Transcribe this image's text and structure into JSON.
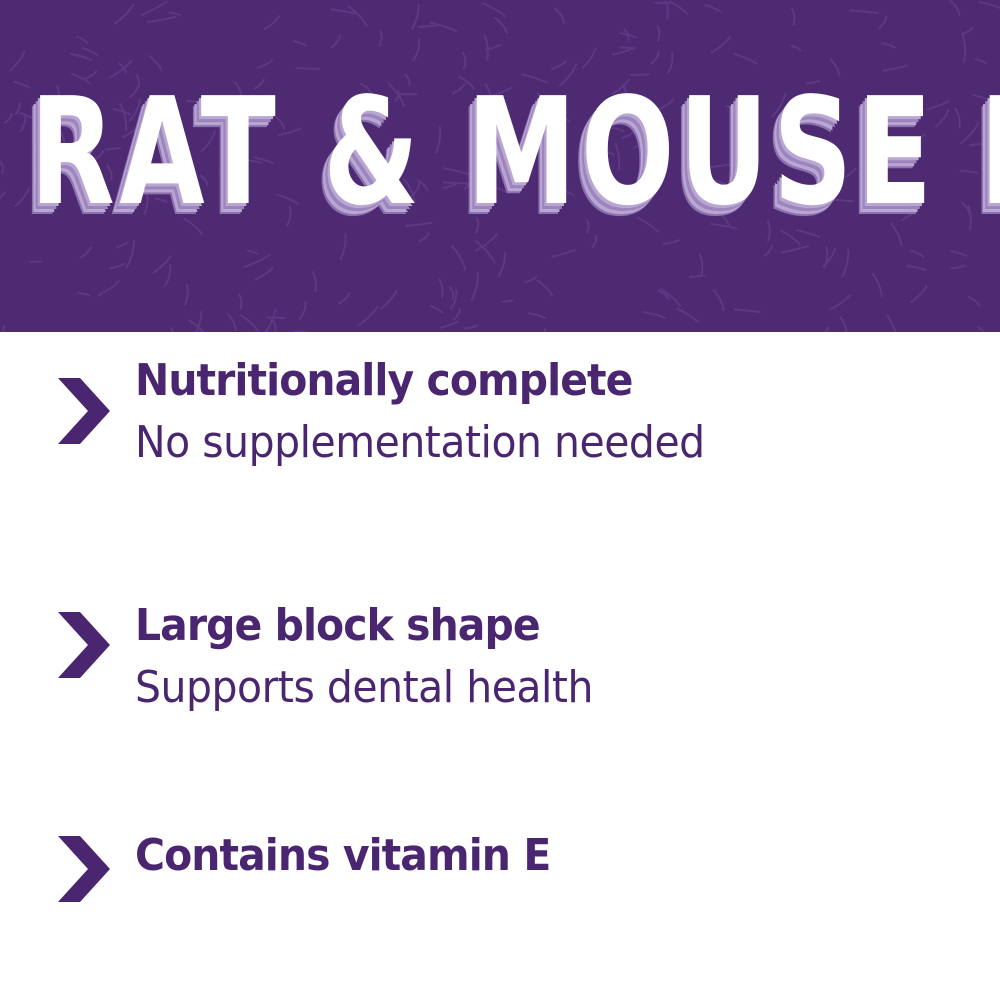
{
  "colors": {
    "banner": "#4e2a73",
    "text": "#4a2570",
    "title": "#ffffff"
  },
  "title": "RAT & MOUSE DIET",
  "features": [
    {
      "icon": "chevron-right-icon",
      "heading": "Nutritionally complete",
      "subtext": "No supplementation needed"
    },
    {
      "icon": "chevron-right-icon",
      "heading": "Large block shape",
      "subtext": "Supports dental health"
    },
    {
      "icon": "chevron-right-icon",
      "heading": "Contains vitamin E"
    }
  ]
}
